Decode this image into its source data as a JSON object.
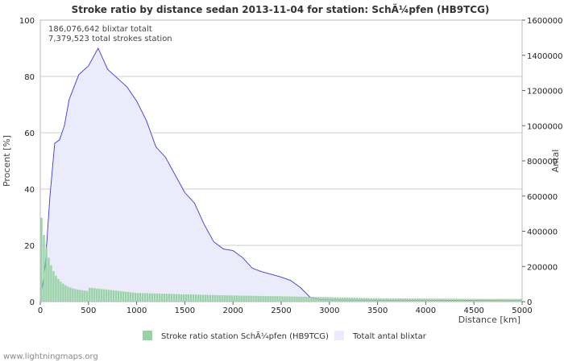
{
  "chart_data": {
    "type": "bar",
    "title": "Stroke ratio by distance sedan 2013-11-04 for station: SchÃ¼pfen (HB9TCG)",
    "xlabel": "Distance   [km]",
    "ylabel_left": "Procent   [%]",
    "ylabel_right": "Antal",
    "xlim": [
      0,
      5000
    ],
    "ylim_left": [
      0,
      100
    ],
    "ylim_right": [
      0,
      1600000
    ],
    "x_ticks": [
      "0",
      "500",
      "1000",
      "1500",
      "2000",
      "2500",
      "3000",
      "3500",
      "4000",
      "4500",
      "5000"
    ],
    "y_left_ticks": [
      "0",
      "20",
      "40",
      "60",
      "80",
      "100"
    ],
    "y_right_ticks": [
      "0",
      "200000",
      "400000",
      "600000",
      "800000",
      "1000000",
      "1200000",
      "1400000",
      "1600000"
    ],
    "annotations": [
      "186,076,642 blixtar totalt",
      "7,379,523 total strokes station"
    ],
    "series": [
      {
        "name": "Stroke ratio station SchÃ¼pfen (HB9TCG)",
        "type": "bar",
        "axis": "left",
        "color": "#98d3a5",
        "x": [
          0,
          500,
          1000,
          1500,
          2000,
          2500,
          3000,
          3500,
          4000,
          4500,
          5000
        ],
        "values": [
          31,
          5,
          3.1,
          2.6,
          2.2,
          1.9,
          1.6,
          1.2,
          1.1,
          1.0,
          1.0
        ]
      },
      {
        "name": "Totalt antal blixtar",
        "type": "area",
        "axis": "right",
        "color": "#3b3bd6",
        "fill": "#ecebfb",
        "x": [
          0,
          50,
          100,
          150,
          200,
          250,
          300,
          400,
          500,
          600,
          700,
          800,
          900,
          1000,
          1100,
          1200,
          1300,
          1400,
          1500,
          1600,
          1700,
          1800,
          1900,
          2000,
          2100,
          2200,
          2300,
          2400,
          2500,
          2600,
          2700,
          2800,
          2900,
          3000,
          3500,
          4000,
          4500,
          5000
        ],
        "values": [
          0,
          200000,
          600000,
          900000,
          920000,
          1000000,
          1150000,
          1290000,
          1340000,
          1440000,
          1320000,
          1270000,
          1220000,
          1140000,
          1030000,
          880000,
          820000,
          720000,
          620000,
          560000,
          440000,
          340000,
          300000,
          290000,
          250000,
          190000,
          170000,
          155000,
          140000,
          120000,
          80000,
          25000,
          12000,
          10000,
          8000,
          8000,
          7000,
          6000
        ]
      }
    ]
  },
  "credit": "www.lightningmaps.org"
}
